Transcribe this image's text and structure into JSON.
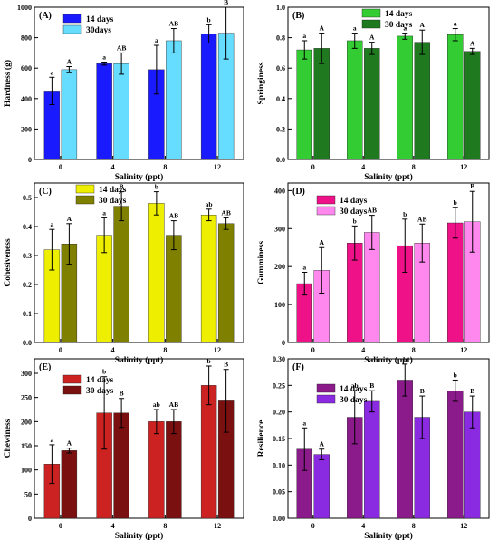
{
  "chart_data": [
    {
      "panel": "(A)",
      "type": "bar",
      "xlabel": "Salinity (ppt)",
      "ylabel": "Hardness (g)",
      "categories": [
        "0",
        "4",
        "8",
        "12"
      ],
      "ylim": [
        0,
        1000
      ],
      "yticks": [
        0,
        200,
        400,
        600,
        800,
        1000
      ],
      "legend_position": "top-left",
      "series": [
        {
          "name": "14 days",
          "color": "#1a1aff",
          "values": [
            450,
            630,
            590,
            825
          ],
          "errors": [
            90,
            10,
            160,
            60
          ],
          "labels": [
            "a",
            "a",
            "a",
            "b"
          ]
        },
        {
          "name": "30days",
          "color": "#66ddff",
          "values": [
            590,
            630,
            780,
            830
          ],
          "errors": [
            20,
            70,
            80,
            170
          ],
          "labels": [
            "A",
            "AB",
            "AB",
            "B"
          ]
        }
      ]
    },
    {
      "panel": "(B)",
      "type": "bar",
      "xlabel": "Salinity (ppt)",
      "ylabel": "Springiness",
      "categories": [
        "0",
        "4",
        "8",
        "12"
      ],
      "ylim": [
        0,
        1.0
      ],
      "yticks": [
        0.0,
        0.2,
        0.4,
        0.6,
        0.8,
        1.0
      ],
      "legend_position": "top-center",
      "series": [
        {
          "name": "14 days",
          "color": "#33cc33",
          "values": [
            0.72,
            0.78,
            0.81,
            0.82
          ],
          "errors": [
            0.06,
            0.05,
            0.02,
            0.04
          ],
          "labels": [
            "a",
            "a",
            "a",
            "a"
          ]
        },
        {
          "name": "30 days",
          "color": "#1f7a1f",
          "values": [
            0.73,
            0.73,
            0.77,
            0.71
          ],
          "errors": [
            0.1,
            0.04,
            0.08,
            0.02
          ],
          "labels": [
            "A",
            "A",
            "A",
            "A"
          ]
        }
      ]
    },
    {
      "panel": "(C)",
      "type": "bar",
      "xlabel": "Salinity (ppt)",
      "ylabel": "Cohesiveness",
      "categories": [
        "0",
        "4",
        "8",
        "12"
      ],
      "ylim": [
        0,
        0.55
      ],
      "yticks": [
        0.0,
        0.1,
        0.2,
        0.3,
        0.4,
        0.5
      ],
      "legend_position": "top-left",
      "series": [
        {
          "name": "14 days",
          "color": "#eeee00",
          "values": [
            0.32,
            0.37,
            0.48,
            0.44
          ],
          "errors": [
            0.07,
            0.06,
            0.04,
            0.02
          ],
          "labels": [
            "a",
            "a",
            "b",
            "ab"
          ]
        },
        {
          "name": "30 days",
          "color": "#808000",
          "values": [
            0.34,
            0.47,
            0.37,
            0.41
          ],
          "errors": [
            0.07,
            0.05,
            0.05,
            0.02
          ],
          "labels": [
            "A",
            "B",
            "AB",
            "AB"
          ]
        }
      ]
    },
    {
      "panel": "(D)",
      "type": "bar",
      "xlabel": "Salinity (ppt)",
      "ylabel": "Gumminess",
      "categories": [
        "0",
        "4",
        "8",
        "12"
      ],
      "ylim": [
        0,
        420
      ],
      "yticks": [
        0,
        100,
        200,
        300,
        400
      ],
      "legend_position": "top-left",
      "series": [
        {
          "name": "14 days",
          "color": "#ee1188",
          "values": [
            155,
            262,
            255,
            315
          ],
          "errors": [
            30,
            45,
            70,
            40
          ],
          "labels": [
            "a",
            "b",
            "b",
            "b"
          ]
        },
        {
          "name": "30 days",
          "color": "#ff88ee",
          "values": [
            190,
            290,
            262,
            318
          ],
          "errors": [
            60,
            45,
            50,
            80
          ],
          "labels": [
            "A",
            "AB",
            "AB",
            "B"
          ]
        }
      ]
    },
    {
      "panel": "(E)",
      "type": "bar",
      "xlabel": "Salinity (ppt)",
      "ylabel": "Chewiness",
      "categories": [
        "0",
        "4",
        "8",
        "12"
      ],
      "ylim": [
        0,
        330
      ],
      "yticks": [
        0,
        50,
        100,
        150,
        200,
        250,
        300
      ],
      "legend_position": "top-left",
      "series": [
        {
          "name": "14 days",
          "color": "#cc2222",
          "values": [
            112,
            218,
            200,
            275
          ],
          "errors": [
            40,
            75,
            25,
            40
          ],
          "labels": [
            "a",
            "b",
            "ab",
            "b"
          ]
        },
        {
          "name": "30 days",
          "color": "#7a1010",
          "values": [
            140,
            218,
            200,
            243
          ],
          "errors": [
            5,
            30,
            25,
            65
          ],
          "labels": [
            "A",
            "B",
            "AB",
            "B"
          ]
        }
      ]
    },
    {
      "panel": "(F)",
      "type": "bar",
      "xlabel": "Salinity (ppt)",
      "ylabel": "Resilience",
      "categories": [
        "0",
        "4",
        "8",
        "12"
      ],
      "ylim": [
        0,
        0.3
      ],
      "yticks": [
        0.0,
        0.05,
        0.1,
        0.15,
        0.2,
        0.25,
        0.3
      ],
      "legend_position": "top-left",
      "series": [
        {
          "name": "14 days",
          "color": "#8b1a8b",
          "values": [
            0.13,
            0.19,
            0.26,
            0.24
          ],
          "errors": [
            0.04,
            0.05,
            0.03,
            0.02
          ],
          "labels": [
            "a",
            "ab",
            "b",
            "b"
          ]
        },
        {
          "name": "30 days",
          "color": "#8a2be2",
          "values": [
            0.12,
            0.22,
            0.19,
            0.2
          ],
          "errors": [
            0.01,
            0.02,
            0.04,
            0.03
          ],
          "labels": [
            "A",
            "B",
            "B",
            "B"
          ]
        }
      ]
    }
  ]
}
